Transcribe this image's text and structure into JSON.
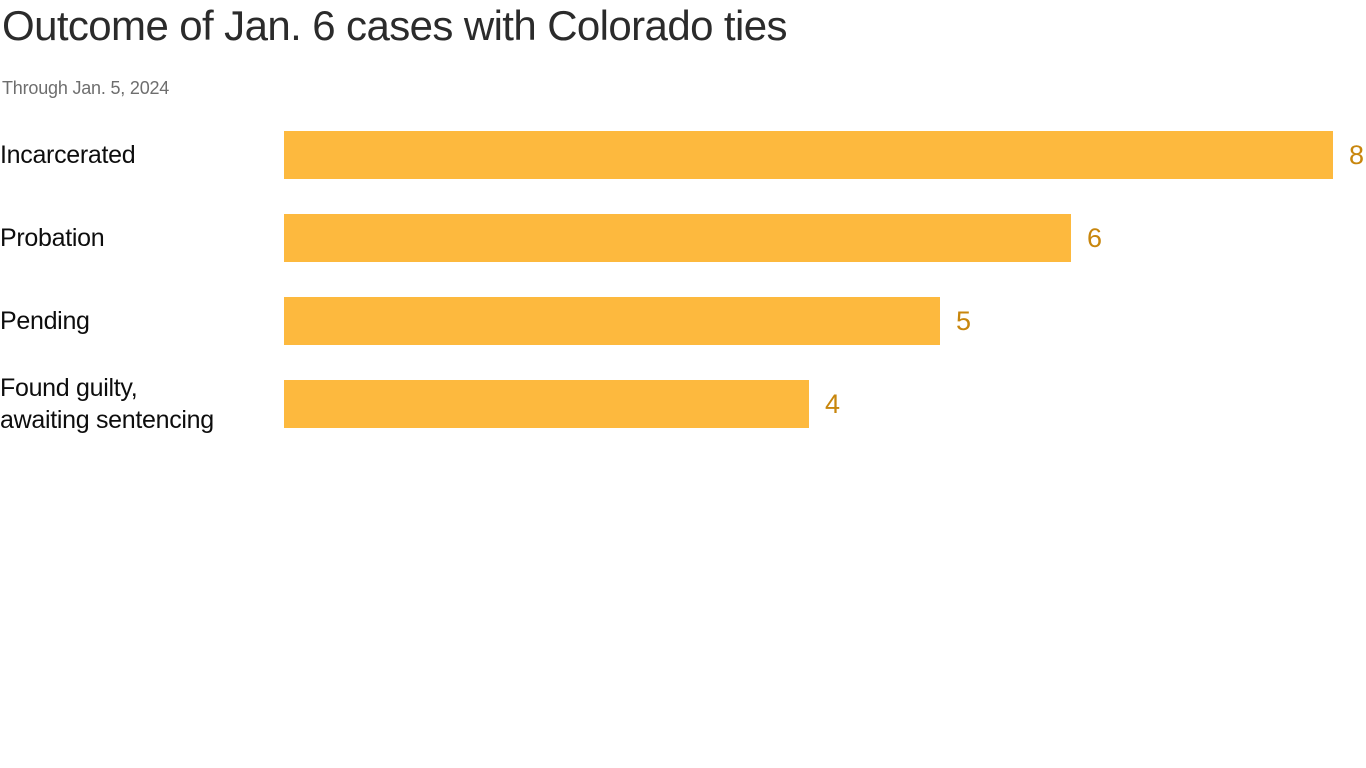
{
  "chart": {
    "title": "Outcome of Jan. 6 cases with Colorado ties",
    "subtitle": "Through Jan. 5, 2024"
  },
  "chart_data": {
    "type": "bar",
    "orientation": "horizontal",
    "title": "Outcome of Jan. 6 cases with Colorado ties",
    "subtitle": "Through Jan. 5, 2024",
    "categories": [
      "Incarcerated",
      "Probation",
      "Pending",
      "Found guilty,\nawaiting sentencing"
    ],
    "values": [
      8,
      6,
      5,
      4
    ],
    "xlabel": "",
    "ylabel": "",
    "xlim": [
      0,
      8
    ],
    "grid": false,
    "legend": false,
    "value_labels": "end-of-bar",
    "colors": {
      "bar": "#FDB93E",
      "value_label": "#C8860D",
      "category_label": "#0D0D0D",
      "title": "#2B2B2B",
      "subtitle": "#6E6E6E",
      "background": "#FFFFFF"
    }
  }
}
